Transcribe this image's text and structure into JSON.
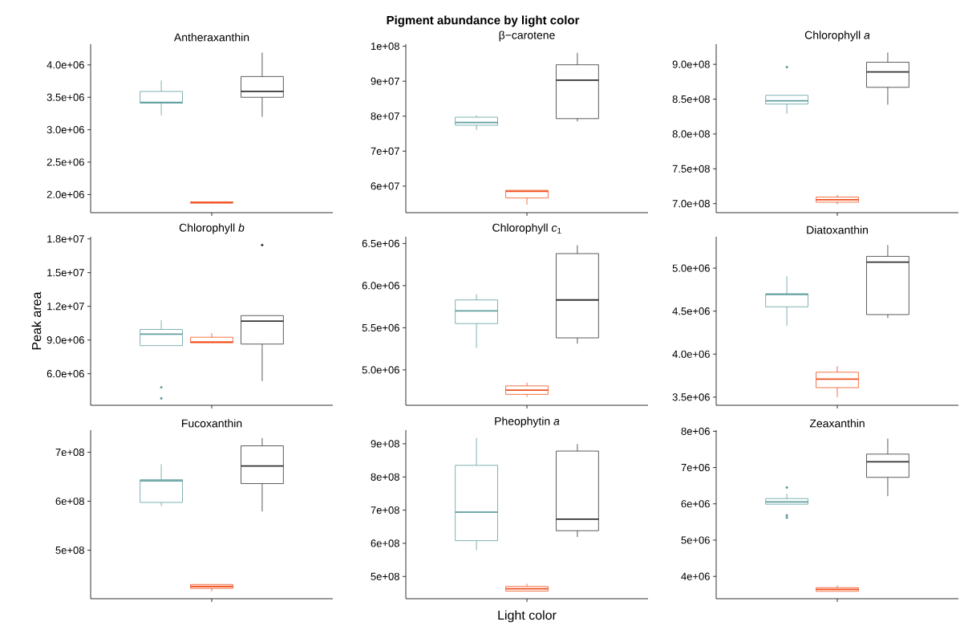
{
  "chart_data": [
    {
      "type": "box",
      "title": "Antheraxanthin",
      "categories": [
        null
      ],
      "ylim": [
        1720000,
        4320000
      ],
      "yticks": [
        {
          "value": 2000000,
          "label": "2.0e+06"
        },
        {
          "value": 2500000,
          "label": "2.5e+06"
        },
        {
          "value": 3000000,
          "label": "3.0e+06"
        },
        {
          "value": 3500000,
          "label": "3.5e+06"
        },
        {
          "value": 4000000,
          "label": "4.0e+06"
        }
      ],
      "series": [
        {
          "color": "#5f9ea0",
          "boxes": [
            {
              "low": 3220000,
              "q1": 3410000,
              "median": 3420000,
              "q3": 3590000,
              "high": 3760000
            }
          ]
        },
        {
          "color": "#f0501e",
          "boxes": [
            {
              "low": 1860000,
              "q1": 1868000,
              "median": 1876000,
              "q3": 1886000,
              "high": 1888000
            }
          ]
        },
        {
          "color": "#333333",
          "boxes": [
            {
              "low": 3200000,
              "q1": 3500000,
              "median": 3590000,
              "q3": 3820000,
              "high": 4190000
            }
          ]
        }
      ]
    },
    {
      "type": "box",
      "title": "β−carotene",
      "annotations": [
        "Pigment abundance by light color"
      ],
      "categories": [
        null
      ],
      "ylim": [
        52400000,
        100600000
      ],
      "yticks": [
        {
          "value": 60000000,
          "label": "6e+07"
        },
        {
          "value": 70000000,
          "label": "7e+07"
        },
        {
          "value": 80000000,
          "label": "8e+07"
        },
        {
          "value": 90000000,
          "label": "9e+07"
        },
        {
          "value": 100000000,
          "label": "1e+08"
        }
      ],
      "series": [
        {
          "color": "#5f9ea0",
          "boxes": [
            {
              "low": 76000000,
              "q1": 77400000,
              "median": 78200000,
              "q3": 79700000,
              "high": 80200000
            }
          ]
        },
        {
          "color": "#f0501e",
          "boxes": [
            {
              "low": 54700000,
              "q1": 56600000,
              "median": 58500000,
              "q3": 58800000,
              "high": 58800000
            }
          ]
        },
        {
          "color": "#333333",
          "boxes": [
            {
              "low": 78500000,
              "q1": 79300000,
              "median": 90300000,
              "q3": 94700000,
              "high": 98100000
            }
          ]
        }
      ]
    },
    {
      "type": "box",
      "title": "Chlorophyll *a*",
      "categories": [
        null
      ],
      "ylim": [
        687000000,
        929000000
      ],
      "yticks": [
        {
          "value": 700000000,
          "label": "7.0e+08"
        },
        {
          "value": 750000000,
          "label": "7.5e+08"
        },
        {
          "value": 800000000,
          "label": "8.0e+08"
        },
        {
          "value": 850000000,
          "label": "8.5e+08"
        },
        {
          "value": 900000000,
          "label": "9.0e+08"
        }
      ],
      "series": [
        {
          "color": "#5f9ea0",
          "boxes": [
            {
              "low": 829000000,
              "q1": 843000000,
              "median": 847500000,
              "q3": 855500000,
              "high": 855500000,
              "outliers": [
                896000000
              ]
            }
          ]
        },
        {
          "color": "#f0501e",
          "boxes": [
            {
              "low": 699000000,
              "q1": 702000000,
              "median": 705600000,
              "q3": 709400000,
              "high": 712600000
            }
          ]
        },
        {
          "color": "#333333",
          "boxes": [
            {
              "low": 842000000,
              "q1": 867000000,
              "median": 889000000,
              "q3": 903000000,
              "high": 917000000
            }
          ]
        }
      ]
    },
    {
      "type": "box",
      "title": "Chlorophyll *b*",
      "ylabel": "Peak area",
      "categories": [
        null
      ],
      "ylim": [
        3190000,
        18190000
      ],
      "yticks": [
        {
          "value": 6000000,
          "label": "6.0e+06"
        },
        {
          "value": 9000000,
          "label": "9.0e+06"
        },
        {
          "value": 12000000,
          "label": "1.2e+07"
        },
        {
          "value": 15000000,
          "label": "1.5e+07"
        },
        {
          "value": 18000000,
          "label": "1.8e+07"
        }
      ],
      "series": [
        {
          "color": "#5f9ea0",
          "boxes": [
            {
              "low": 8500000,
              "q1": 8500000,
              "median": 9520000,
              "q3": 9940000,
              "high": 10760000,
              "outliers": [
                4790000,
                3800000
              ]
            }
          ]
        },
        {
          "color": "#f0501e",
          "boxes": [
            {
              "low": 8750000,
              "q1": 8750000,
              "median": 8830000,
              "q3": 9250000,
              "high": 9610000
            }
          ]
        },
        {
          "color": "#333333",
          "boxes": [
            {
              "low": 5340000,
              "q1": 8640000,
              "median": 10680000,
              "q3": 11170000,
              "high": 11170000,
              "outliers": [
                17450000
              ]
            }
          ]
        }
      ]
    },
    {
      "type": "box",
      "title": "Chlorophyll *c*$_{1}$",
      "categories": [
        null
      ],
      "ylim": [
        4580000,
        6580000
      ],
      "yticks": [
        {
          "value": 5000000,
          "label": "5.0e+06"
        },
        {
          "value": 5500000,
          "label": "5.5e+06"
        },
        {
          "value": 6000000,
          "label": "6.0e+06"
        },
        {
          "value": 6500000,
          "label": "6.5e+06"
        }
      ],
      "series": [
        {
          "color": "#5f9ea0",
          "boxes": [
            {
              "low": 5260000,
              "q1": 5550000,
              "median": 5700000,
              "q3": 5830000,
              "high": 5900000
            }
          ]
        },
        {
          "color": "#f0501e",
          "boxes": [
            {
              "low": 4680000,
              "q1": 4710000,
              "median": 4760000,
              "q3": 4810000,
              "high": 4850000
            }
          ]
        },
        {
          "color": "#333333",
          "boxes": [
            {
              "low": 5310000,
              "q1": 5380000,
              "median": 5830000,
              "q3": 6380000,
              "high": 6480000
            }
          ]
        }
      ]
    },
    {
      "type": "box",
      "title": "Diatoxanthin",
      "categories": [
        null
      ],
      "ylim": [
        3405000,
        5365000
      ],
      "yticks": [
        {
          "value": 3500000,
          "label": "3.5e+06"
        },
        {
          "value": 4000000,
          "label": "4.0e+06"
        },
        {
          "value": 4500000,
          "label": "4.5e+06"
        },
        {
          "value": 5000000,
          "label": "5.0e+06"
        }
      ],
      "series": [
        {
          "color": "#5f9ea0",
          "boxes": [
            {
              "low": 4330000,
              "q1": 4550000,
              "median": 4695000,
              "q3": 4703000,
              "high": 4905000
            }
          ]
        },
        {
          "color": "#f0501e",
          "boxes": [
            {
              "low": 3500000,
              "q1": 3610000,
              "median": 3710000,
              "q3": 3790000,
              "high": 3860000
            }
          ]
        },
        {
          "color": "#333333",
          "boxes": [
            {
              "low": 4420000,
              "q1": 4460000,
              "median": 5070000,
              "q3": 5137000,
              "high": 5270000
            }
          ]
        }
      ]
    },
    {
      "type": "box",
      "title": "Fucoxanthin",
      "categories": [
        null
      ],
      "ylim": [
        401000000,
        745000000
      ],
      "yticks": [
        {
          "value": 500000000,
          "label": "5e+08"
        },
        {
          "value": 600000000,
          "label": "6e+08"
        },
        {
          "value": 700000000,
          "label": "7e+08"
        }
      ],
      "series": [
        {
          "color": "#5f9ea0",
          "boxes": [
            {
              "low": 590000000,
              "q1": 597500000,
              "median": 641500000,
              "q3": 644000000,
              "high": 675500000
            }
          ]
        },
        {
          "color": "#f0501e",
          "boxes": [
            {
              "low": 416000000,
              "q1": 422000000,
              "median": 426000000,
              "q3": 430000000,
              "high": 430000000
            }
          ]
        },
        {
          "color": "#333333",
          "boxes": [
            {
              "low": 579000000,
              "q1": 636000000,
              "median": 672000000,
              "q3": 713000000,
              "high": 729000000
            }
          ]
        }
      ]
    },
    {
      "type": "box",
      "title": "Pheophytin *a*",
      "xlabel": "Light color",
      "categories": [
        null
      ],
      "ylim": [
        433000000,
        941000000
      ],
      "yticks": [
        {
          "value": 500000000,
          "label": "5e+08"
        },
        {
          "value": 600000000,
          "label": "6e+08"
        },
        {
          "value": 700000000,
          "label": "7e+08"
        },
        {
          "value": 800000000,
          "label": "8e+08"
        },
        {
          "value": 900000000,
          "label": "9e+08"
        }
      ],
      "series": [
        {
          "color": "#5f9ea0",
          "boxes": [
            {
              "low": 579000000,
              "q1": 608000000,
              "median": 694000000,
              "q3": 835000000,
              "high": 918000000
            }
          ]
        },
        {
          "color": "#f0501e",
          "boxes": [
            {
              "low": 456000000,
              "q1": 456000000,
              "median": 463000000,
              "q3": 470000000,
              "high": 478000000
            }
          ]
        },
        {
          "color": "#333333",
          "boxes": [
            {
              "low": 619000000,
              "q1": 638000000,
              "median": 673000000,
              "q3": 878000000,
              "high": 899000000
            }
          ]
        }
      ]
    },
    {
      "type": "box",
      "title": "Zeaxanthin",
      "categories": [
        null
      ],
      "ylim": [
        3385000,
        8030000
      ],
      "yticks": [
        {
          "value": 4000000,
          "label": "4e+06"
        },
        {
          "value": 5000000,
          "label": "5e+06"
        },
        {
          "value": 6000000,
          "label": "6e+06"
        },
        {
          "value": 7000000,
          "label": "7e+06"
        },
        {
          "value": 8000000,
          "label": "8e+06"
        }
      ],
      "series": [
        {
          "color": "#5f9ea0",
          "boxes": [
            {
              "low": 5990000,
              "q1": 5990000,
              "median": 6055000,
              "q3": 6145000,
              "high": 6280000,
              "outliers": [
                6450000,
                5680000,
                5620000
              ]
            }
          ]
        },
        {
          "color": "#f0501e",
          "boxes": [
            {
              "low": 3590000,
              "q1": 3590000,
              "median": 3640000,
              "q3": 3690000,
              "high": 3750000
            }
          ]
        },
        {
          "color": "#333333",
          "boxes": [
            {
              "low": 6210000,
              "q1": 6730000,
              "median": 7160000,
              "q3": 7370000,
              "high": 7800000
            }
          ]
        }
      ]
    }
  ]
}
